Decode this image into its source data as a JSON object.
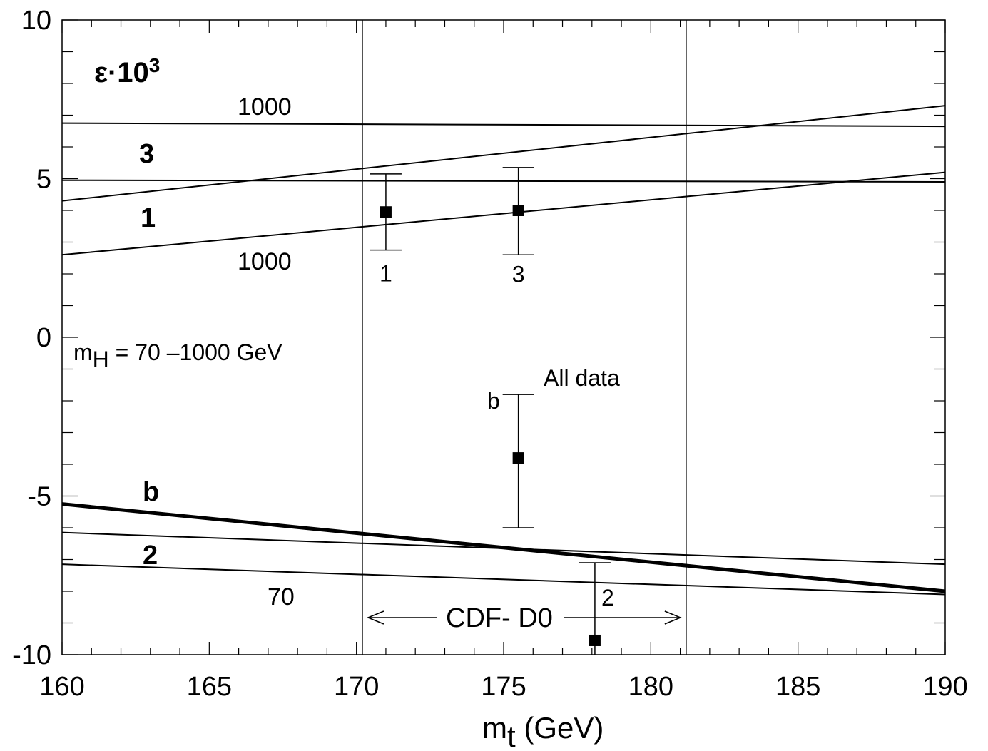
{
  "chart_data": {
    "type": "line",
    "title": "",
    "xlabel": "m",
    "xlabel_sub": "t",
    "xlabel_unit": " (GeV)",
    "ylabel": "ε·10",
    "ylabel_sup": "3",
    "xlim": [
      160,
      190
    ],
    "ylim": [
      -10,
      10
    ],
    "x_ticks": [
      160,
      165,
      170,
      175,
      180,
      185,
      190
    ],
    "x_tick_labels": [
      "160",
      "165",
      "170",
      "175",
      "180",
      "185",
      "190"
    ],
    "y_ticks": [
      -10,
      -5,
      0,
      5,
      10
    ],
    "y_tick_labels": [
      "-10",
      "-5",
      "0",
      "5",
      "10"
    ],
    "grid": false,
    "series": [
      {
        "name": "3",
        "mh_label": "1000",
        "x": [
          160,
          190
        ],
        "y": [
          6.75,
          6.65
        ]
      },
      {
        "name": "3",
        "mh_label": "70",
        "x": [
          160,
          190
        ],
        "y": [
          4.3,
          7.3
        ]
      },
      {
        "name": "1",
        "mh_label": "70",
        "x": [
          160,
          190
        ],
        "y": [
          4.95,
          4.9
        ]
      },
      {
        "name": "1",
        "mh_label": "1000",
        "x": [
          160,
          190
        ],
        "y": [
          2.6,
          5.2
        ]
      },
      {
        "name": "b",
        "mh_label": "",
        "x": [
          160,
          190
        ],
        "y": [
          -5.25,
          -8.0
        ],
        "bold": true
      },
      {
        "name": "2",
        "mh_label": "1000",
        "x": [
          160,
          190
        ],
        "y": [
          -6.15,
          -7.15
        ]
      },
      {
        "name": "2",
        "mh_label": "70",
        "x": [
          160,
          190
        ],
        "y": [
          -7.15,
          -8.1
        ]
      }
    ],
    "points": [
      {
        "label": "1",
        "x": 171.0,
        "y": 3.95,
        "err_low": 2.75,
        "err_high": 5.15
      },
      {
        "label": "3",
        "x": 175.5,
        "y": 4.0,
        "err_low": 2.6,
        "err_high": 5.35
      },
      {
        "label": "b",
        "x": 175.5,
        "y": -3.8,
        "err_low": -6.0,
        "err_high": -1.8
      },
      {
        "label": "2",
        "x": 178.1,
        "y": -9.55,
        "err_low": -10.0,
        "err_high": -7.1
      }
    ],
    "vertical_lines": [
      170.2,
      181.2
    ],
    "band_label": "CDF- D0",
    "annotations": {
      "mh_range_prefix": "m",
      "mh_range_sub": "H",
      "mh_range_rest": " = 70 –1000 GeV",
      "all_data": "All data",
      "line_labels": {
        "label_3": "3",
        "label_1": "1",
        "label_b": "b",
        "label_2": "2",
        "label_1000_top": "1000",
        "label_1000_bottom": "1000",
        "label_70": "70"
      }
    }
  }
}
